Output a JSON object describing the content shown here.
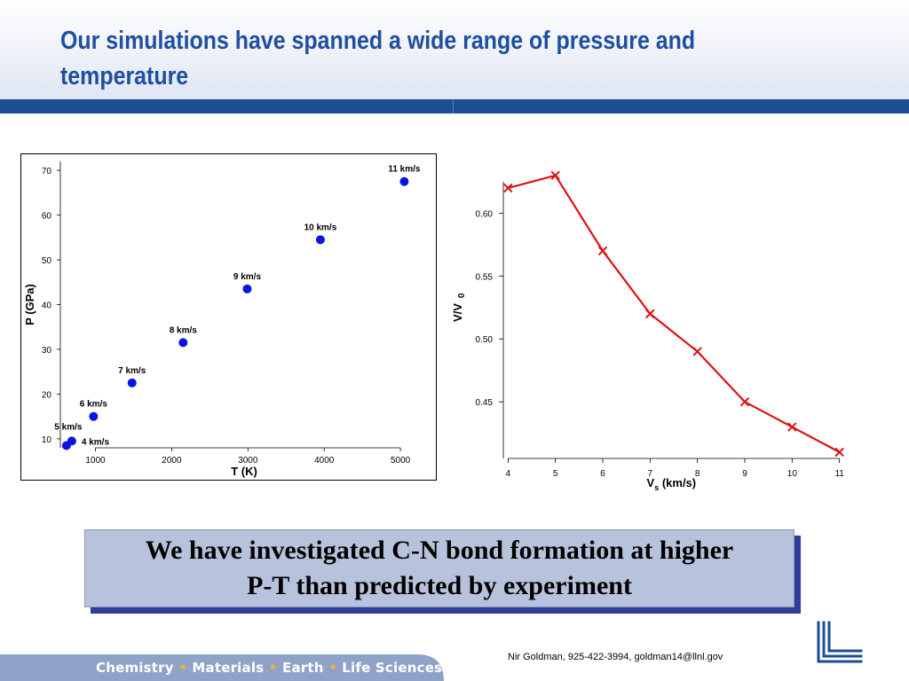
{
  "slide": {
    "title": "Our simulations have spanned a wide range of pressure and temperature",
    "callout_line1": "We have investigated C-N bond formation at higher",
    "callout_line2": "P-T than predicted by experiment",
    "contact": "Nir Goldman, 925-422-3994, goldman14@llnl.gov",
    "footer": {
      "items": [
        "Chemistry",
        "Materials",
        "Earth",
        "Life Sciences"
      ],
      "separator": "•"
    },
    "colors": {
      "title": "#1f4fa0",
      "header_bar": "#1d4e94",
      "callout_bg": "#b7c3dc",
      "callout_shadow": "#2e3f9a",
      "footer_bg": "#8fa3c9",
      "separator": "#f2b330",
      "logo": "#1d4e94"
    },
    "logo_icon": "llnl-logo-icon"
  },
  "chart_data": [
    {
      "type": "scatter",
      "xlabel": "T (K)",
      "ylabel": "P (GPa)",
      "xlim": [
        540,
        5150
      ],
      "ylim": [
        8,
        72
      ],
      "xticks": [
        1000,
        2000,
        3000,
        4000,
        5000
      ],
      "yticks": [
        10,
        20,
        30,
        40,
        50,
        60,
        70
      ],
      "marker_color": "#0a14e0",
      "points": [
        {
          "x": 620,
          "y": 8.5,
          "label": ""
        },
        {
          "x": 690,
          "y": 9.5,
          "label": "4 km/s"
        },
        {
          "x": 975,
          "y": 15,
          "label": "6 km/s"
        },
        {
          "x": 1480,
          "y": 22.5,
          "label": "7 km/s"
        },
        {
          "x": 2150,
          "y": 31.5,
          "label": "8 km/s"
        },
        {
          "x": 2990,
          "y": 43.5,
          "label": "9 km/s"
        },
        {
          "x": 3950,
          "y": 54.5,
          "label": "10 km/s"
        },
        {
          "x": 5050,
          "y": 67.5,
          "label": "11 km/s"
        }
      ],
      "extra_labels": [
        {
          "text": "5 km/s",
          "near_index": 0
        }
      ]
    },
    {
      "type": "line",
      "xlabel_main": "V",
      "xlabel_sub": "s",
      "xlabel_tail": " (km/s)",
      "ylabel_main": "V/V",
      "ylabel_sub": "0",
      "xlim": [
        3.9,
        11.1
      ],
      "ylim": [
        0.405,
        0.632
      ],
      "xticks": [
        4,
        5,
        6,
        7,
        8,
        9,
        10,
        11
      ],
      "yticks": [
        0.45,
        0.5,
        0.55,
        0.6
      ],
      "ytick_labels": [
        "0.45",
        "0.50",
        "0.55",
        "0.60"
      ],
      "color": "#e01010",
      "x": [
        4,
        5,
        6,
        7,
        8,
        9,
        10,
        11
      ],
      "y": [
        0.62,
        0.63,
        0.57,
        0.52,
        0.49,
        0.45,
        0.43,
        0.41
      ]
    }
  ]
}
